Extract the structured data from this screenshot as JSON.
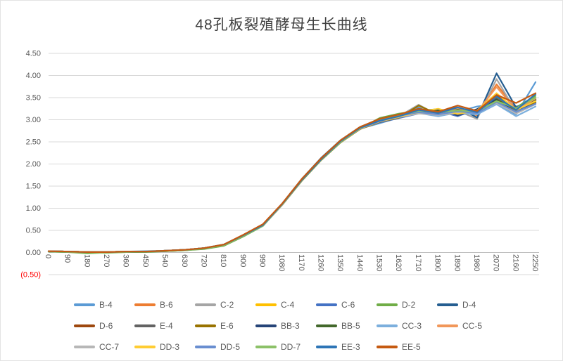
{
  "chart": {
    "title": "48孔板裂殖酵母生长曲线",
    "colors": {
      "title_text": "#404040",
      "axis_text": "#595959",
      "negative_tick_text": "#FF0000",
      "gridline": "#D9D9D9",
      "axis_line": "#BFBFBF",
      "background": "#FFFFFF"
    }
  },
  "chart_data": {
    "type": "line",
    "title": "48孔板裂殖酵母生长曲线",
    "xlabel": "",
    "ylabel": "",
    "x": [
      0,
      90,
      180,
      270,
      360,
      450,
      540,
      630,
      720,
      810,
      900,
      990,
      1080,
      1170,
      1260,
      1350,
      1440,
      1530,
      1620,
      1710,
      1800,
      1890,
      1980,
      2070,
      2160,
      2250
    ],
    "ylim": [
      -0.5,
      4.5
    ],
    "ytick_values": [
      4.5,
      4.0,
      3.5,
      3.0,
      2.5,
      2.0,
      1.5,
      1.0,
      0.5,
      0.0,
      -0.5
    ],
    "ytick_labels": [
      "4.50",
      "4.00",
      "3.50",
      "3.00",
      "2.50",
      "2.00",
      "1.50",
      "1.00",
      "0.50",
      "0.00",
      "(0.50)"
    ],
    "grid": "horizontal",
    "legend_position": "bottom",
    "legend_rows": [
      7,
      7,
      6
    ],
    "series": [
      {
        "name": "B-4",
        "color": "#5B9BD5",
        "values": [
          0.03,
          0.02,
          0.01,
          0.01,
          0.02,
          0.03,
          0.04,
          0.06,
          0.1,
          0.17,
          0.38,
          0.6,
          1.08,
          1.63,
          2.1,
          2.5,
          2.8,
          2.92,
          3.05,
          3.28,
          3.08,
          3.18,
          3.3,
          3.35,
          3.12,
          3.85
        ]
      },
      {
        "name": "B-6",
        "color": "#ED7D31",
        "values": [
          0.03,
          0.02,
          0.01,
          0.01,
          0.02,
          0.02,
          0.04,
          0.06,
          0.1,
          0.18,
          0.4,
          0.62,
          1.1,
          1.66,
          2.13,
          2.53,
          2.82,
          2.98,
          3.1,
          3.2,
          3.14,
          3.24,
          3.1,
          3.8,
          3.25,
          3.48
        ]
      },
      {
        "name": "C-2",
        "color": "#A5A5A5",
        "values": [
          0.03,
          0.02,
          0.01,
          0.01,
          0.02,
          0.02,
          0.04,
          0.06,
          0.1,
          0.18,
          0.39,
          0.61,
          1.09,
          1.64,
          2.11,
          2.51,
          2.81,
          2.96,
          3.08,
          3.34,
          3.1,
          3.2,
          3.02,
          3.92,
          3.18,
          3.4
        ]
      },
      {
        "name": "C-4",
        "color": "#FFC000",
        "values": [
          0.03,
          0.02,
          0.01,
          0.01,
          0.02,
          0.02,
          0.04,
          0.06,
          0.1,
          0.18,
          0.39,
          0.62,
          1.1,
          1.65,
          2.12,
          2.52,
          2.82,
          2.98,
          3.12,
          3.22,
          3.16,
          3.12,
          3.24,
          3.5,
          3.18,
          3.44
        ]
      },
      {
        "name": "C-6",
        "color": "#4472C4",
        "values": [
          0.03,
          0.02,
          0.01,
          0.01,
          0.02,
          0.02,
          0.04,
          0.06,
          0.1,
          0.18,
          0.39,
          0.62,
          1.1,
          1.65,
          2.12,
          2.52,
          2.82,
          2.94,
          3.04,
          3.14,
          3.2,
          3.08,
          3.24,
          3.44,
          3.3,
          3.38
        ]
      },
      {
        "name": "D-2",
        "color": "#70AD47",
        "values": [
          0.02,
          0.01,
          -0.02,
          0.0,
          0.01,
          0.01,
          0.03,
          0.05,
          0.08,
          0.15,
          0.36,
          0.6,
          1.08,
          1.62,
          2.09,
          2.49,
          2.8,
          3.04,
          3.14,
          3.2,
          3.24,
          3.14,
          3.2,
          3.4,
          3.28,
          3.54
        ]
      },
      {
        "name": "D-4",
        "color": "#255E91",
        "values": [
          0.03,
          0.02,
          0.01,
          0.01,
          0.02,
          0.02,
          0.04,
          0.06,
          0.1,
          0.18,
          0.4,
          0.63,
          1.11,
          1.66,
          2.14,
          2.54,
          2.84,
          3.0,
          3.1,
          3.24,
          3.18,
          3.28,
          3.05,
          4.05,
          3.28,
          3.45
        ]
      },
      {
        "name": "D-6",
        "color": "#9E480E",
        "values": [
          0.03,
          0.02,
          0.01,
          0.01,
          0.02,
          0.02,
          0.04,
          0.06,
          0.1,
          0.18,
          0.39,
          0.61,
          1.09,
          1.63,
          2.1,
          2.5,
          2.8,
          2.96,
          3.06,
          3.16,
          3.1,
          3.2,
          3.16,
          3.42,
          3.22,
          3.36
        ]
      },
      {
        "name": "E-4",
        "color": "#636363",
        "values": [
          0.03,
          0.02,
          0.01,
          0.01,
          0.02,
          0.02,
          0.04,
          0.06,
          0.1,
          0.18,
          0.39,
          0.62,
          1.09,
          1.64,
          2.11,
          2.51,
          2.81,
          2.97,
          3.09,
          3.19,
          3.13,
          3.17,
          3.21,
          3.55,
          3.26,
          3.42
        ]
      },
      {
        "name": "E-6",
        "color": "#997300",
        "values": [
          0.03,
          0.02,
          0.01,
          0.01,
          0.02,
          0.02,
          0.04,
          0.06,
          0.09,
          0.17,
          0.38,
          0.61,
          1.08,
          1.62,
          2.09,
          2.49,
          2.79,
          2.95,
          3.05,
          3.32,
          3.12,
          3.18,
          3.14,
          3.48,
          3.2,
          3.4
        ]
      },
      {
        "name": "BB-3",
        "color": "#264478",
        "values": [
          0.03,
          0.02,
          0.01,
          0.01,
          0.02,
          0.02,
          0.04,
          0.06,
          0.1,
          0.18,
          0.39,
          0.62,
          1.1,
          1.65,
          2.12,
          2.52,
          2.83,
          2.99,
          3.09,
          3.19,
          3.22,
          3.1,
          3.24,
          3.46,
          3.16,
          3.44
        ]
      },
      {
        "name": "BB-5",
        "color": "#43682B",
        "values": [
          0.02,
          0.01,
          0.01,
          0.01,
          0.01,
          0.02,
          0.03,
          0.05,
          0.09,
          0.16,
          0.37,
          0.61,
          1.09,
          1.63,
          2.1,
          2.5,
          2.81,
          3.02,
          3.12,
          3.18,
          3.2,
          3.24,
          3.16,
          3.44,
          3.26,
          3.46
        ]
      },
      {
        "name": "CC-3",
        "color": "#7CAFDD",
        "values": [
          0.03,
          0.02,
          0.01,
          0.01,
          0.02,
          0.02,
          0.04,
          0.06,
          0.1,
          0.18,
          0.38,
          0.61,
          1.09,
          1.64,
          2.11,
          2.51,
          2.81,
          2.97,
          3.07,
          3.15,
          3.08,
          3.16,
          3.12,
          3.35,
          3.08,
          3.3
        ]
      },
      {
        "name": "CC-5",
        "color": "#F1975A",
        "values": [
          0.03,
          0.02,
          0.01,
          0.01,
          0.02,
          0.02,
          0.04,
          0.06,
          0.1,
          0.18,
          0.4,
          0.63,
          1.1,
          1.65,
          2.12,
          2.53,
          2.83,
          2.99,
          3.11,
          3.21,
          3.15,
          3.26,
          3.18,
          3.74,
          3.22,
          3.48
        ]
      },
      {
        "name": "CC-7",
        "color": "#B7B7B7",
        "values": [
          0.03,
          0.02,
          0.01,
          0.01,
          0.02,
          0.02,
          0.04,
          0.06,
          0.1,
          0.17,
          0.38,
          0.61,
          1.08,
          1.63,
          2.1,
          2.5,
          2.8,
          2.96,
          3.06,
          3.14,
          3.11,
          3.15,
          3.19,
          3.38,
          3.14,
          3.35
        ]
      },
      {
        "name": "DD-3",
        "color": "#FFCD33",
        "values": [
          0.03,
          0.02,
          0.01,
          0.01,
          0.02,
          0.02,
          0.04,
          0.06,
          0.1,
          0.18,
          0.39,
          0.62,
          1.09,
          1.64,
          2.11,
          2.51,
          2.81,
          2.97,
          3.07,
          3.17,
          3.25,
          3.13,
          3.21,
          3.6,
          3.22,
          3.42
        ]
      },
      {
        "name": "DD-5",
        "color": "#698ED0",
        "values": [
          0.03,
          0.02,
          0.01,
          0.01,
          0.02,
          0.02,
          0.04,
          0.06,
          0.1,
          0.18,
          0.39,
          0.62,
          1.1,
          1.64,
          2.11,
          2.51,
          2.81,
          2.97,
          3.09,
          3.17,
          3.12,
          3.19,
          3.15,
          3.4,
          3.18,
          3.36
        ]
      },
      {
        "name": "DD-7",
        "color": "#8CC168",
        "values": [
          0.02,
          0.01,
          0.0,
          -0.01,
          0.01,
          0.02,
          0.03,
          0.05,
          0.09,
          0.16,
          0.37,
          0.61,
          1.09,
          1.63,
          2.1,
          2.5,
          2.81,
          3.0,
          3.1,
          3.2,
          3.17,
          3.21,
          3.19,
          3.42,
          3.26,
          3.5
        ]
      },
      {
        "name": "EE-3",
        "color": "#2E75B6",
        "values": [
          0.03,
          0.02,
          0.01,
          0.01,
          0.02,
          0.02,
          0.04,
          0.06,
          0.1,
          0.18,
          0.39,
          0.62,
          1.1,
          1.64,
          2.11,
          2.52,
          2.82,
          2.98,
          3.08,
          3.22,
          3.15,
          3.28,
          3.17,
          3.52,
          3.22,
          3.58
        ]
      },
      {
        "name": "EE-5",
        "color": "#C55A11",
        "values": [
          0.03,
          0.02,
          0.01,
          0.01,
          0.02,
          0.02,
          0.04,
          0.06,
          0.1,
          0.18,
          0.4,
          0.64,
          1.11,
          1.66,
          2.13,
          2.54,
          2.84,
          3.02,
          3.12,
          3.25,
          3.18,
          3.32,
          3.2,
          3.56,
          3.38,
          3.6
        ]
      }
    ]
  }
}
